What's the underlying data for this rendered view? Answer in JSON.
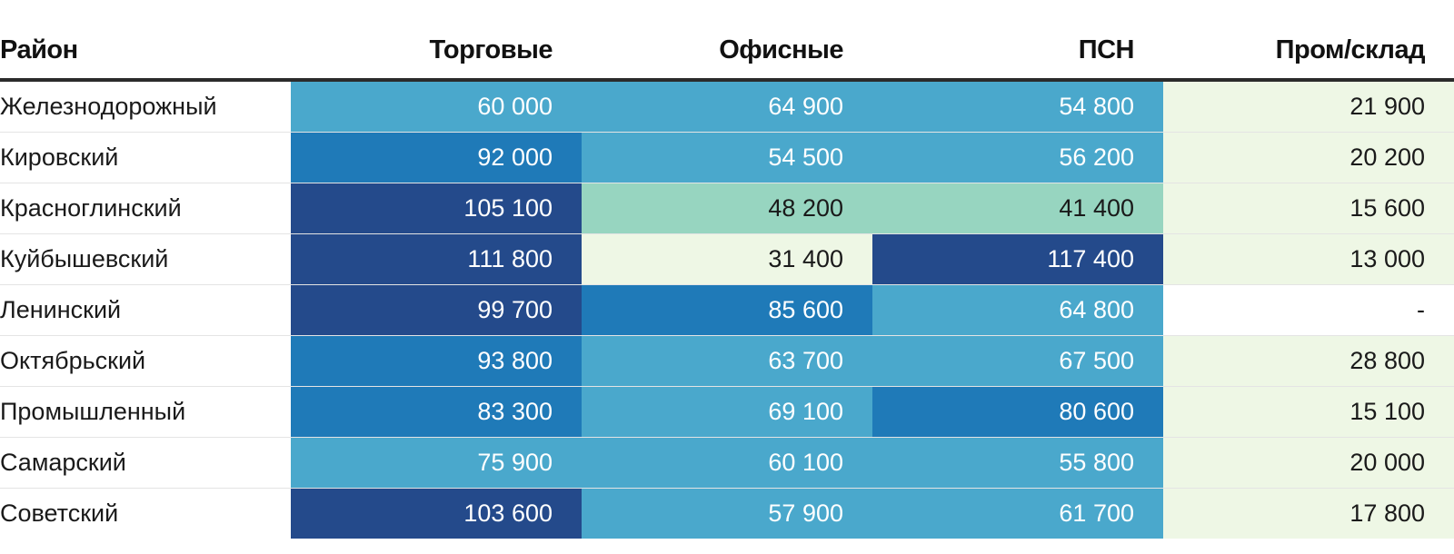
{
  "chart_data": {
    "type": "heatmap",
    "title": "",
    "row_header": "Район",
    "columns": [
      "Торговые",
      "Офисные",
      "ПСН",
      "Пром/склад"
    ],
    "rows": [
      {
        "name": "Железнодорожный",
        "values": [
          60000,
          64900,
          54800,
          21900
        ],
        "labels": [
          "60 000",
          "64 900",
          "54 800",
          "21 900"
        ]
      },
      {
        "name": "Кировский",
        "values": [
          92000,
          54500,
          56200,
          20200
        ],
        "labels": [
          "92 000",
          "54 500",
          "56 200",
          "20 200"
        ]
      },
      {
        "name": "Красноглинский",
        "values": [
          105100,
          48200,
          41400,
          15600
        ],
        "labels": [
          "105 100",
          "48 200",
          "41 400",
          "15 600"
        ]
      },
      {
        "name": "Куйбышевский",
        "values": [
          111800,
          31400,
          117400,
          13000
        ],
        "labels": [
          "111 800",
          "31 400",
          "117 400",
          "13 000"
        ]
      },
      {
        "name": "Ленинский",
        "values": [
          99700,
          85600,
          64800,
          null
        ],
        "labels": [
          "99 700",
          "85 600",
          "64 800",
          "-"
        ]
      },
      {
        "name": "Октябрьский",
        "values": [
          93800,
          63700,
          67500,
          28800
        ],
        "labels": [
          "93 800",
          "63 700",
          "67 500",
          "28 800"
        ]
      },
      {
        "name": "Промышленный",
        "values": [
          83300,
          69100,
          80600,
          15100
        ],
        "labels": [
          "83 300",
          "69 100",
          "80 600",
          "15 100"
        ]
      },
      {
        "name": "Самарский",
        "values": [
          75900,
          60100,
          55800,
          20000
        ],
        "labels": [
          "75 900",
          "60 100",
          "55 800",
          "20 000"
        ]
      },
      {
        "name": "Советский",
        "values": [
          103600,
          57900,
          61700,
          17800
        ],
        "labels": [
          "103 600",
          "57 900",
          "61 700",
          "17 800"
        ]
      }
    ],
    "color_scale": {
      "thresholds": [
        40000,
        52000,
        80000,
        95000
      ],
      "colors": [
        "#eef7e5",
        "#97d5c0",
        "#4aa8cc",
        "#1f7ab8",
        "#244a8b"
      ],
      "text_colors": [
        "#1a1a1a",
        "#1a1a1a",
        "#ffffff",
        "#ffffff",
        "#ffffff"
      ],
      "missing_color": "#ffffff",
      "missing_text_color": "#1a1a1a"
    }
  }
}
